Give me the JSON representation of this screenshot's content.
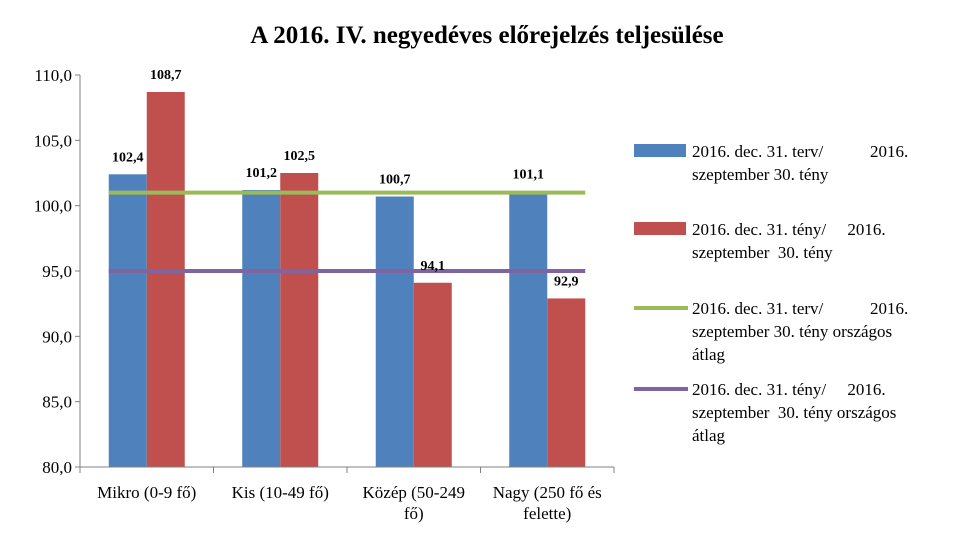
{
  "chart_data": {
    "type": "bar",
    "title": "A 2016. IV. negyedéves előrejelzés teljesülése",
    "categories": [
      [
        "Mikro (0-9 fő)"
      ],
      [
        "Kis (10-49 fő)"
      ],
      [
        "Közép (50-249",
        "fő)"
      ],
      [
        "Nagy (250 fő és",
        "felette)"
      ]
    ],
    "series": [
      {
        "name": "2016. dec. 31. terv/ 2016. szeptember 30. tény",
        "legend_lines": [
          "2016. dec. 31. terv/           2016.",
          "szeptember 30. tény"
        ],
        "color": "#4F81BD",
        "values": [
          102.4,
          101.2,
          100.7,
          101.1
        ],
        "labels": [
          "102,4",
          "101,2",
          "100,7",
          "101,1"
        ]
      },
      {
        "name": "2016. dec. 31. tény/ 2016. szeptember 30. tény",
        "legend_lines": [
          "2016. dec. 31. tény/     2016.",
          "szeptember  30. tény"
        ],
        "color": "#C0504D",
        "values": [
          108.7,
          102.5,
          94.1,
          92.9
        ],
        "labels": [
          "108,7",
          "102,5",
          "94,1",
          "92,9"
        ]
      }
    ],
    "lines": [
      {
        "name": "2016. dec. 31. terv/ 2016. szeptember 30. tény országos átlag",
        "legend_lines": [
          "2016. dec. 31. terv/           2016.",
          "szeptember 30. tény országos",
          "átlag"
        ],
        "color": "#9BBB59",
        "value": 101.0
      },
      {
        "name": "2016. dec. 31. tény/ 2016. szeptember 30. tény országos átlag",
        "legend_lines": [
          "2016. dec. 31. tény/     2016.",
          "szeptember  30. tény országos",
          "átlag"
        ],
        "color": "#8064A2",
        "value": 95.0
      }
    ],
    "ylim": [
      80,
      110
    ],
    "yticks": [
      80,
      85,
      90,
      95,
      100,
      105,
      110
    ],
    "ytick_labels": [
      "80,0",
      "85,0",
      "90,0",
      "95,0",
      "100,0",
      "105,0",
      "110,0"
    ],
    "legend_position": "right",
    "grid": false
  }
}
